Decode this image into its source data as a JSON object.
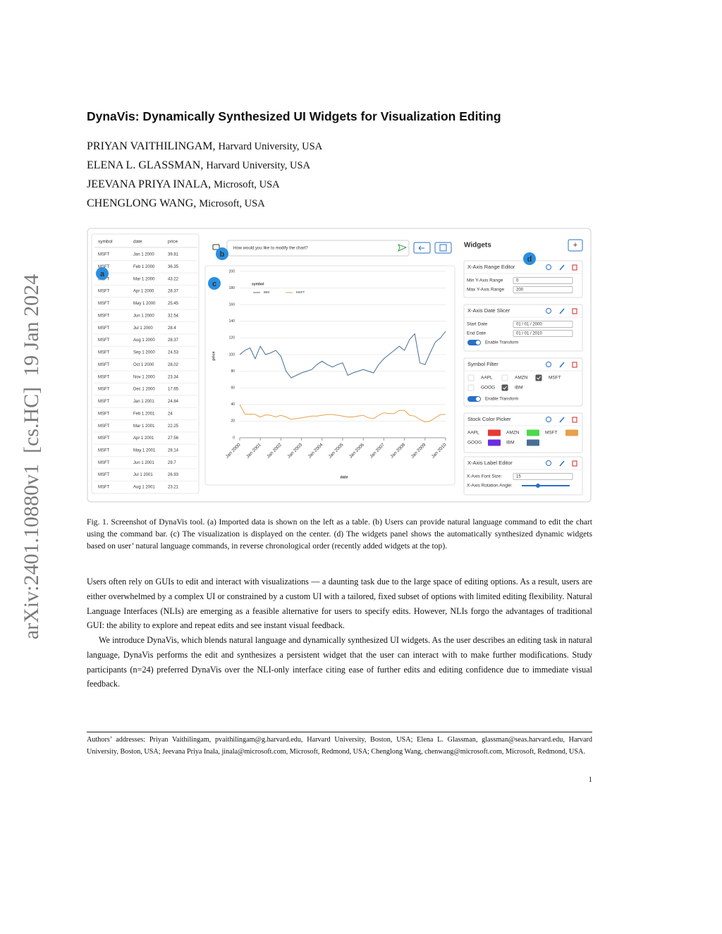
{
  "watermark": "arXiv:2401.10880v1  [cs.HC]  19 Jan 2024",
  "header": {
    "title": "DynaVis: Dynamically Synthesized UI Widgets for Visualization Editing",
    "authors": [
      {
        "name": "PRIYAN VAITHILINGAM,",
        "affiliation": "Harvard University, USA"
      },
      {
        "name": "ELENA L. GLASSMAN,",
        "affiliation": "Harvard University, USA"
      },
      {
        "name": "JEEVANA PRIYA INALA,",
        "affiliation": "Microsoft, USA"
      },
      {
        "name": "CHENGLONG WANG,",
        "affiliation": "Microsoft, USA"
      }
    ]
  },
  "figure": {
    "badges": [
      "a",
      "b",
      "c",
      "d"
    ],
    "table": {
      "columns": [
        "symbol",
        "date",
        "price"
      ],
      "rows": [
        [
          "MSFT",
          "Jan 1 2000",
          39.81
        ],
        [
          "MSFT",
          "Feb 1 2000",
          36.35
        ],
        [
          "MSFT",
          "Mar 1 2000",
          43.22
        ],
        [
          "MSFT",
          "Apr 1 2000",
          28.37
        ],
        [
          "MSFT",
          "May 1 2000",
          25.45
        ],
        [
          "MSFT",
          "Jun 1 2000",
          32.54
        ],
        [
          "MSFT",
          "Jul 1 2000",
          28.4
        ],
        [
          "MSFT",
          "Aug 1 2000",
          28.37
        ],
        [
          "MSFT",
          "Sep 1 2000",
          24.53
        ],
        [
          "MSFT",
          "Oct 1 2000",
          28.02
        ],
        [
          "MSFT",
          "Nov 1 2000",
          23.34
        ],
        [
          "MSFT",
          "Dec 1 2000",
          17.65
        ],
        [
          "MSFT",
          "Jan 1 2001",
          24.84
        ],
        [
          "MSFT",
          "Feb 1 2001",
          24
        ],
        [
          "MSFT",
          "Mar 1 2001",
          22.25
        ],
        [
          "MSFT",
          "Apr 1 2001",
          27.56
        ],
        [
          "MSFT",
          "May 1 2001",
          28.14
        ],
        [
          "MSFT",
          "Jun 1 2001",
          29.7
        ],
        [
          "MSFT",
          "Jul 1 2001",
          26.93
        ],
        [
          "MSFT",
          "Aug 1 2001",
          23.21
        ]
      ]
    },
    "command_bar": {
      "placeholder": "How would you like to modify the chart?"
    },
    "chart_data": {
      "type": "line",
      "legend_title": "symbol",
      "xlabel": "date",
      "ylabel": "price",
      "x": [
        "Jan 2000",
        "Apr 2000",
        "Jul 2000",
        "Oct 2000",
        "Jan 2001",
        "Apr 2001",
        "Jul 2001",
        "Oct 2001",
        "Jan 2002",
        "Apr 2002",
        "Jul 2002",
        "Oct 2002",
        "Jan 2003",
        "Apr 2003",
        "Jul 2003",
        "Oct 2003",
        "Jan 2004",
        "Apr 2004",
        "Jul 2004",
        "Oct 2004",
        "Jan 2005",
        "Apr 2005",
        "Jul 2005",
        "Oct 2005",
        "Jan 2006",
        "Apr 2006",
        "Jul 2006",
        "Oct 2006",
        "Jan 2007",
        "Apr 2007",
        "Jul 2007",
        "Oct 2007",
        "Jan 2008",
        "Apr 2008",
        "Jul 2008",
        "Oct 2008",
        "Jan 2009",
        "Apr 2009",
        "Jul 2009",
        "Oct 2009",
        "Jan 2010"
      ],
      "series": [
        {
          "name": "IBM",
          "color": "#4a6f96",
          "values": [
            100,
            105,
            108,
            95,
            110,
            100,
            102,
            105,
            98,
            80,
            72,
            75,
            78,
            80,
            82,
            88,
            92,
            88,
            85,
            88,
            90,
            75,
            78,
            80,
            82,
            80,
            78,
            88,
            95,
            100,
            105,
            110,
            105,
            118,
            125,
            90,
            88,
            102,
            115,
            120,
            128
          ]
        },
        {
          "name": "MSFT",
          "color": "#e8a04a",
          "values": [
            39.81,
            28.37,
            28.4,
            28.02,
            24.84,
            27.56,
            26.93,
            25,
            27,
            25,
            22,
            23,
            24,
            25,
            26,
            26,
            27,
            28,
            28,
            27,
            26,
            25,
            25,
            26,
            27,
            24,
            23,
            27,
            30,
            29,
            29,
            33,
            33,
            27,
            26,
            22,
            19,
            20,
            24,
            28,
            28
          ]
        }
      ],
      "ylim": [
        0,
        200
      ],
      "yticks": [
        0,
        20,
        40,
        60,
        80,
        100,
        120,
        140,
        160,
        180,
        200
      ],
      "xticks": [
        "Jan 2000",
        "Jan 2001",
        "Jan 2002",
        "Jan 2003",
        "Jan 2004",
        "Jan 2005",
        "Jan 2006",
        "Jan 2007",
        "Jan 2008",
        "Jan 2009",
        "Jan 2010"
      ],
      "grid": true
    },
    "widgets": {
      "title": "Widgets",
      "add": "+",
      "items": [
        {
          "title": "X-Axis Range Editor",
          "fields": [
            {
              "label": "Min Y-Axis Range",
              "value": "0"
            },
            {
              "label": "Max Y-Axis Range",
              "value": "200"
            }
          ]
        },
        {
          "title": "X-Axis Date Slicer",
          "fields": [
            {
              "label": "Start Date",
              "value": "01 / 01 / 2000"
            },
            {
              "label": "End Date",
              "value": "01 / 01 / 2010"
            }
          ],
          "toggle": "Enable Transform"
        },
        {
          "title": "Symbol Filter",
          "checkboxes": [
            {
              "label": "AAPL",
              "checked": false
            },
            {
              "label": "AMZN",
              "checked": false
            },
            {
              "label": "MSFT",
              "checked": true
            },
            {
              "label": "GOOG",
              "checked": false
            },
            {
              "label": "IBM",
              "checked": true
            }
          ],
          "toggle": "Enable Transform"
        },
        {
          "title": "Stock Color Picker",
          "swatches": [
            {
              "label": "AAPL",
              "color": "#e53935"
            },
            {
              "label": "AMZN",
              "color": "#4cd94c"
            },
            {
              "label": "MSFT",
              "color": "#e8a04a"
            },
            {
              "label": "GOOG",
              "color": "#6a2ee0"
            },
            {
              "label": "IBM",
              "color": "#4a6f96"
            }
          ]
        },
        {
          "title": "X-Axis Label Editor",
          "fields": [
            {
              "label": "X-Axis Font Size:",
              "value": "15"
            }
          ],
          "slider": "X-Axis Rotation Angle:"
        }
      ]
    }
  },
  "caption": "Fig. 1.  Screenshot of DynaVis tool. (a) Imported data is shown on the left as a table. (b) Users can provide natural language command to edit the chart using the command bar. (c) The visualization is displayed on the center. (d) The widgets panel shows the automatically synthesized dynamic widgets based on user’ natural language commands, in reverse chronological order (recently added widgets at the top).",
  "body": [
    "Users often rely on GUIs to edit and interact with visualizations — a daunting task due to the large space of editing options. As a result, users are either overwhelmed by a complex UI or constrained by a custom UI with a tailored, fixed subset of options with limited editing flexibility. Natural Language Interfaces (NLIs) are emerging as a feasible alternative for users to specify edits. However, NLIs forgo the advantages of traditional GUI: the ability to explore and repeat edits and see instant visual feedback.",
    "We introduce DynaVis, which blends natural language and dynamically synthesized UI widgets. As the user describes an editing task in natural language, DynaVis performs the edit and synthesizes a persistent widget that the user can interact with to make further modifications. Study participants (n=24) preferred DynaVis over the NLI-only interface citing ease of further edits and editing confidence due to immediate visual feedback."
  ],
  "footnote": "Authors’ addresses: Priyan Vaithilingam, pvaithilingam@g.harvard.edu, Harvard University, Boston, USA; Elena L. Glassman, glassman@seas.harvard.edu, Harvard University, Boston, USA; Jeevana Priya Inala, jinala@microsoft.com, Microsoft, Redmond, USA; Chenglong Wang, chenwang@microsoft.com, Microsoft, Redmond, USA.",
  "page_number": "1"
}
